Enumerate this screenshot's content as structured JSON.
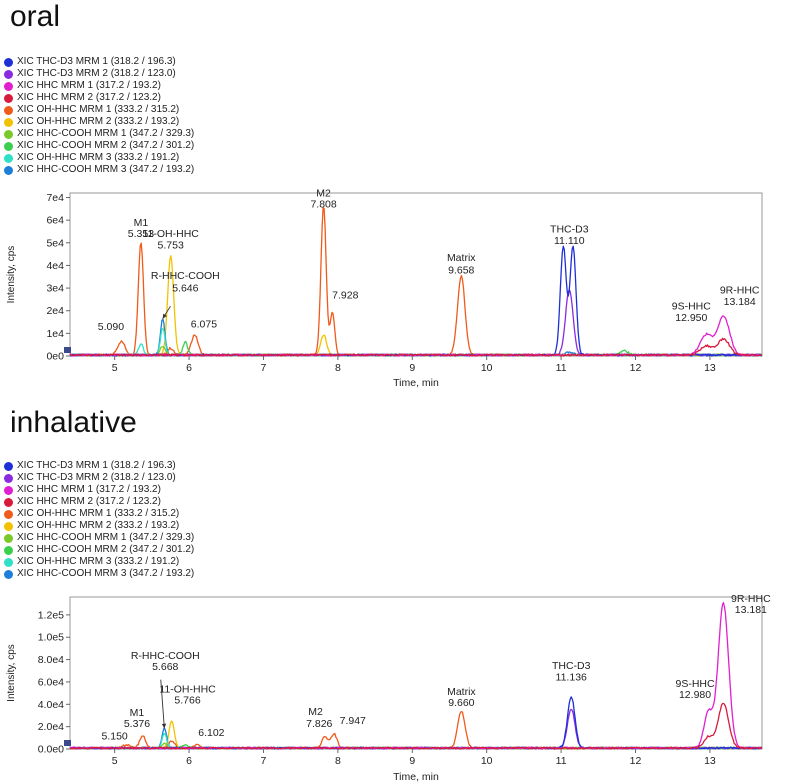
{
  "chart_data": [
    {
      "type": "line",
      "title": "oral",
      "xlabel": "Time, min",
      "ylabel": "Intensity, cps",
      "xlim": [
        4.4,
        13.7
      ],
      "ylim": [
        0,
        72000
      ],
      "yticks": [
        0,
        10000,
        20000,
        30000,
        40000,
        50000,
        60000,
        70000
      ],
      "ytick_labels": [
        "0e0",
        "1e4",
        "2e4",
        "3e4",
        "4e4",
        "5e4",
        "6e4",
        "7e4"
      ],
      "xticks": [
        5,
        6,
        7,
        8,
        9,
        10,
        11,
        12,
        13
      ],
      "xtick_labels": [
        "5",
        "6",
        "7",
        "8",
        "9",
        "10",
        "11",
        "12",
        "13"
      ],
      "legend": [
        {
          "label": "XIC THC-D3 MRM 1 (318.2 / 196.3)",
          "color": "#1f2fd6"
        },
        {
          "label": "XIC THC-D3 MRM 2 (318.2 / 123.0)",
          "color": "#8a2be2"
        },
        {
          "label": "XIC HHC MRM 1 (317.2 / 193.2)",
          "color": "#e020d0"
        },
        {
          "label": "XIC HHC MRM 2 (317.2 / 123.2)",
          "color": "#d81b3c"
        },
        {
          "label": "XIC OH-HHC MRM 1 (333.2 / 315.2)",
          "color": "#f05a1a"
        },
        {
          "label": "XIC OH-HHC MRM 2 (333.2 / 193.2)",
          "color": "#f2c200"
        },
        {
          "label": "XIC HHC-COOH MRM 1 (347.2 / 329.3)",
          "color": "#7ac92a"
        },
        {
          "label": "XIC HHC-COOH MRM 2 (347.2 / 301.2)",
          "color": "#3ccf4e"
        },
        {
          "label": "XIC OH-HHC MRM 3 (333.2 / 191.2)",
          "color": "#2ee0c8"
        },
        {
          "label": "XIC HHC-COOH MRM 3 (347.2 / 193.2)",
          "color": "#1e7fd8"
        }
      ],
      "series": [
        {
          "color": "#f05a1a",
          "peaks": [
            [
              5.09,
              6000,
              0.05
            ],
            [
              5.353,
              50000,
              0.035
            ],
            [
              5.75,
              3000,
              0.04
            ],
            [
              6.075,
              9000,
              0.045
            ],
            [
              7.808,
              66000,
              0.035
            ],
            [
              7.928,
              19000,
              0.03
            ],
            [
              9.658,
              35000,
              0.05
            ]
          ]
        },
        {
          "color": "#f2c200",
          "peaks": [
            [
              5.753,
              44000,
              0.04
            ],
            [
              7.808,
              9000,
              0.04
            ]
          ]
        },
        {
          "color": "#1e7fd8",
          "peaks": [
            [
              5.646,
              16000,
              0.03
            ],
            [
              11.11,
              1200,
              0.05
            ]
          ]
        },
        {
          "color": "#2ee0c8",
          "peaks": [
            [
              5.646,
              12000,
              0.03
            ],
            [
              5.353,
              5000,
              0.03
            ]
          ]
        },
        {
          "color": "#3ccf4e",
          "peaks": [
            [
              5.95,
              6000,
              0.03
            ],
            [
              11.85,
              2000,
              0.05
            ]
          ]
        },
        {
          "color": "#7ac92a",
          "peaks": [
            [
              5.646,
              4000,
              0.035
            ]
          ]
        },
        {
          "color": "#8a2be2",
          "peaks": [
            [
              11.11,
              29000,
              0.05
            ]
          ]
        },
        {
          "color": "#1f2fd6",
          "peaks": [
            [
              11.03,
              48000,
              0.04
            ],
            [
              11.16,
              48000,
              0.04
            ]
          ]
        },
        {
          "color": "#e020d0",
          "peaks": [
            [
              12.95,
              9000,
              0.08
            ],
            [
              13.184,
              17000,
              0.08
            ]
          ]
        },
        {
          "color": "#d81b3c",
          "peaks": [
            [
              12.95,
              4000,
              0.08
            ],
            [
              13.184,
              7000,
              0.08
            ]
          ]
        }
      ],
      "annotations": [
        {
          "text": "M1",
          "x": 5.353,
          "y": 57500
        },
        {
          "text": "5.353",
          "x": 5.353,
          "y": 52500
        },
        {
          "text": "11-OH-HHC",
          "x": 5.753,
          "y": 52500
        },
        {
          "text": "5.753",
          "x": 5.753,
          "y": 47500
        },
        {
          "text": "R-HHC-COOH",
          "x": 5.95,
          "y": 34000
        },
        {
          "text": "5.646",
          "x": 5.95,
          "y": 28500
        },
        {
          "text": "5.090",
          "x": 4.95,
          "y": 11500
        },
        {
          "text": "6.075",
          "x": 6.2,
          "y": 12500
        },
        {
          "text": "M2",
          "x": 7.808,
          "y": 70500
        },
        {
          "text": "7.808",
          "x": 7.808,
          "y": 65500
        },
        {
          "text": "7.928",
          "x": 8.1,
          "y": 25500
        },
        {
          "text": "Matrix",
          "x": 9.658,
          "y": 42000
        },
        {
          "text": "9.658",
          "x": 9.658,
          "y": 36500
        },
        {
          "text": "THC-D3",
          "x": 11.11,
          "y": 54500
        },
        {
          "text": "11.110",
          "x": 11.11,
          "y": 49500
        },
        {
          "text": "9S-HHC",
          "x": 12.75,
          "y": 20500
        },
        {
          "text": "12.950",
          "x": 12.75,
          "y": 15500
        },
        {
          "text": "9R-HHC",
          "x": 13.4,
          "y": 27500
        },
        {
          "text": "13.184",
          "x": 13.4,
          "y": 22500
        }
      ],
      "arrow": {
        "from": [
          5.75,
          22000
        ],
        "to": [
          5.646,
          16500
        ]
      }
    },
    {
      "type": "line",
      "title": "inhalative",
      "xlabel": "Time, min",
      "ylabel": "Intensity, cps",
      "xlim": [
        4.4,
        13.7
      ],
      "ylim": [
        0,
        136000
      ],
      "yticks": [
        0,
        20000,
        40000,
        60000,
        80000,
        100000,
        120000
      ],
      "ytick_labels": [
        "0.0e0",
        "2.0e4",
        "4.0e4",
        "6.0e4",
        "8.0e4",
        "1.0e5",
        "1.2e5"
      ],
      "xticks": [
        5,
        6,
        7,
        8,
        9,
        10,
        11,
        12,
        13
      ],
      "xtick_labels": [
        "5",
        "6",
        "7",
        "8",
        "9",
        "10",
        "11",
        "12",
        "13"
      ],
      "legend": [
        {
          "label": "XIC THC-D3 MRM 1 (318.2 / 196.3)",
          "color": "#1f2fd6"
        },
        {
          "label": "XIC THC-D3 MRM 2 (318.2 / 123.0)",
          "color": "#8a2be2"
        },
        {
          "label": "XIC HHC MRM 1 (317.2 / 193.2)",
          "color": "#e020d0"
        },
        {
          "label": "XIC HHC MRM 2 (317.2 / 123.2)",
          "color": "#d81b3c"
        },
        {
          "label": "XIC OH-HHC MRM 1 (333.2 / 315.2)",
          "color": "#f05a1a"
        },
        {
          "label": "XIC OH-HHC MRM 2 (333.2 / 193.2)",
          "color": "#f2c200"
        },
        {
          "label": "XIC HHC-COOH MRM 1 (347.2 / 329.3)",
          "color": "#7ac92a"
        },
        {
          "label": "XIC HHC-COOH MRM 2 (347.2 / 301.2)",
          "color": "#3ccf4e"
        },
        {
          "label": "XIC OH-HHC MRM 3 (333.2 / 191.2)",
          "color": "#2ee0c8"
        },
        {
          "label": "XIC HHC-COOH MRM 3 (347.2 / 193.2)",
          "color": "#1e7fd8"
        }
      ],
      "series": [
        {
          "color": "#f05a1a",
          "peaks": [
            [
              5.15,
              3000,
              0.05
            ],
            [
              5.376,
              11000,
              0.04
            ],
            [
              5.766,
              6000,
              0.04
            ],
            [
              6.102,
              3000,
              0.04
            ],
            [
              7.826,
              10000,
              0.04
            ],
            [
              7.947,
              13000,
              0.04
            ],
            [
              9.66,
              33000,
              0.05
            ]
          ]
        },
        {
          "color": "#f2c200",
          "peaks": [
            [
              5.766,
              25000,
              0.035
            ]
          ]
        },
        {
          "color": "#1e7fd8",
          "peaks": [
            [
              5.668,
              18000,
              0.03
            ]
          ]
        },
        {
          "color": "#2ee0c8",
          "peaks": [
            [
              5.668,
              14000,
              0.03
            ]
          ]
        },
        {
          "color": "#3ccf4e",
          "peaks": [
            [
              5.95,
              3000,
              0.04
            ]
          ]
        },
        {
          "color": "#7ac92a",
          "peaks": [
            [
              5.668,
              4000,
              0.035
            ]
          ]
        },
        {
          "color": "#8a2be2",
          "peaks": [
            [
              11.136,
              35000,
              0.05
            ]
          ]
        },
        {
          "color": "#1f2fd6",
          "peaks": [
            [
              11.136,
              46000,
              0.05
            ]
          ]
        },
        {
          "color": "#e020d0",
          "peaks": [
            [
              12.98,
              32000,
              0.06
            ],
            [
              13.181,
              130000,
              0.07
            ]
          ]
        },
        {
          "color": "#d81b3c",
          "peaks": [
            [
              12.98,
              10000,
              0.06
            ],
            [
              13.181,
              40000,
              0.07
            ]
          ]
        }
      ],
      "annotations": [
        {
          "text": "5.150",
          "x": 5.0,
          "y": 8500
        },
        {
          "text": "M1",
          "x": 5.3,
          "y": 29500
        },
        {
          "text": "5.376",
          "x": 5.3,
          "y": 19500
        },
        {
          "text": "R-HHC-COOH",
          "x": 5.68,
          "y": 80500
        },
        {
          "text": "5.668",
          "x": 5.68,
          "y": 70500
        },
        {
          "text": "11-OH-HHC",
          "x": 5.98,
          "y": 50500
        },
        {
          "text": "5.766",
          "x": 5.98,
          "y": 40500
        },
        {
          "text": "6.102",
          "x": 6.3,
          "y": 11500
        },
        {
          "text": "M2",
          "x": 7.7,
          "y": 30500
        },
        {
          "text": "7.826",
          "x": 7.75,
          "y": 19500
        },
        {
          "text": "7.947",
          "x": 8.2,
          "y": 22500
        },
        {
          "text": "Matrix",
          "x": 9.66,
          "y": 48500
        },
        {
          "text": "9.660",
          "x": 9.66,
          "y": 38500
        },
        {
          "text": "THC-D3",
          "x": 11.136,
          "y": 71500
        },
        {
          "text": "11.136",
          "x": 11.136,
          "y": 61500
        },
        {
          "text": "9S-HHC",
          "x": 12.8,
          "y": 55500
        },
        {
          "text": "12.980",
          "x": 12.8,
          "y": 45500
        },
        {
          "text": "9R-HHC",
          "x": 13.55,
          "y": 131500
        },
        {
          "text": "13.181",
          "x": 13.55,
          "y": 121500
        }
      ],
      "arrow": {
        "from": [
          5.62,
          62000
        ],
        "to": [
          5.668,
          18500
        ]
      }
    }
  ]
}
